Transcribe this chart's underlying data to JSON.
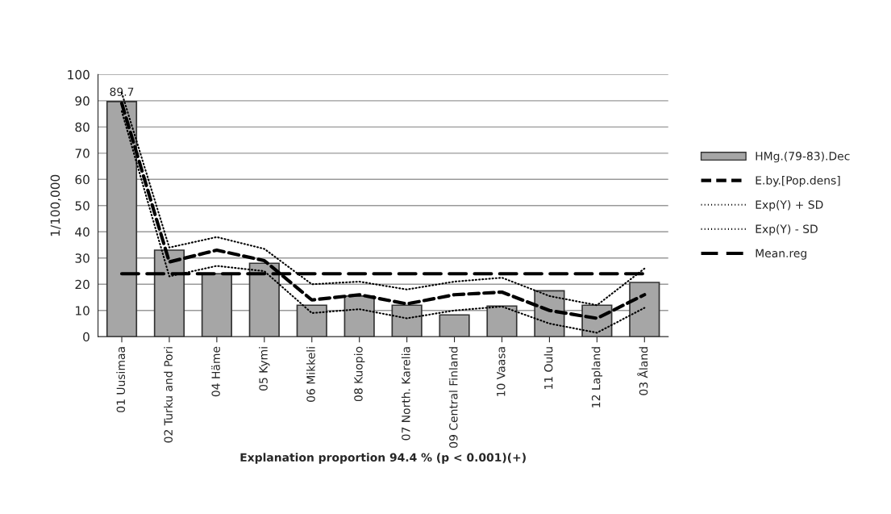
{
  "chart_data": {
    "type": "bar",
    "categories": [
      "01 Uusimaa",
      "02 Turku and Pori",
      "04 Häme",
      "05 Kymi",
      "06 Mikkeli",
      "08 Kuopio",
      "07 North. Karelia",
      "09 Central Finland",
      "10 Vaasa",
      "11 Oulu",
      "12 Lapland",
      "03 Åland"
    ],
    "series": [
      {
        "name": "HMg.(79-83).Dec",
        "color": "#a6a6a6",
        "values": [
          89.7,
          33,
          24,
          28,
          12,
          15.5,
          12,
          8.3,
          11.7,
          17.5,
          12,
          20.7
        ],
        "value_labels": [
          "89.7",
          null,
          null,
          null,
          null,
          null,
          null,
          null,
          null,
          null,
          null,
          null
        ]
      },
      {
        "name": "E.by.[Pop.dens]",
        "type": "line",
        "color": "#000000",
        "line_style": "dashed",
        "values": [
          89,
          28.5,
          33,
          29,
          14,
          16,
          12.5,
          16,
          17,
          10,
          7,
          16
        ]
      },
      {
        "name": "Exp(Y) + SD",
        "type": "line",
        "color": "#000000",
        "line_style": "dotted",
        "values": [
          93,
          34,
          38,
          33.5,
          20,
          21,
          18,
          21,
          22.5,
          15.5,
          12,
          26
        ]
      },
      {
        "name": "Exp(Y) - SD",
        "type": "line",
        "color": "#000000",
        "line_style": "dotted",
        "values": [
          86,
          23,
          27,
          25,
          9,
          10.5,
          7,
          10,
          11.5,
          5,
          1.5,
          11
        ]
      },
      {
        "name": "Mean.reg",
        "type": "line",
        "color": "#000000",
        "line_style": "dashed",
        "values": [
          24,
          24,
          24,
          24,
          24,
          24,
          24,
          24,
          24,
          24,
          24,
          24
        ]
      }
    ],
    "xlabel": "Explanation proportion 94.4 % (p < 0.001)(+)",
    "ylabel": "1/100,000",
    "ylim": [
      0,
      100
    ],
    "yticks": [
      0,
      10,
      20,
      30,
      40,
      50,
      60,
      70,
      80,
      90,
      100
    ],
    "grid": "y",
    "legend": "right"
  }
}
